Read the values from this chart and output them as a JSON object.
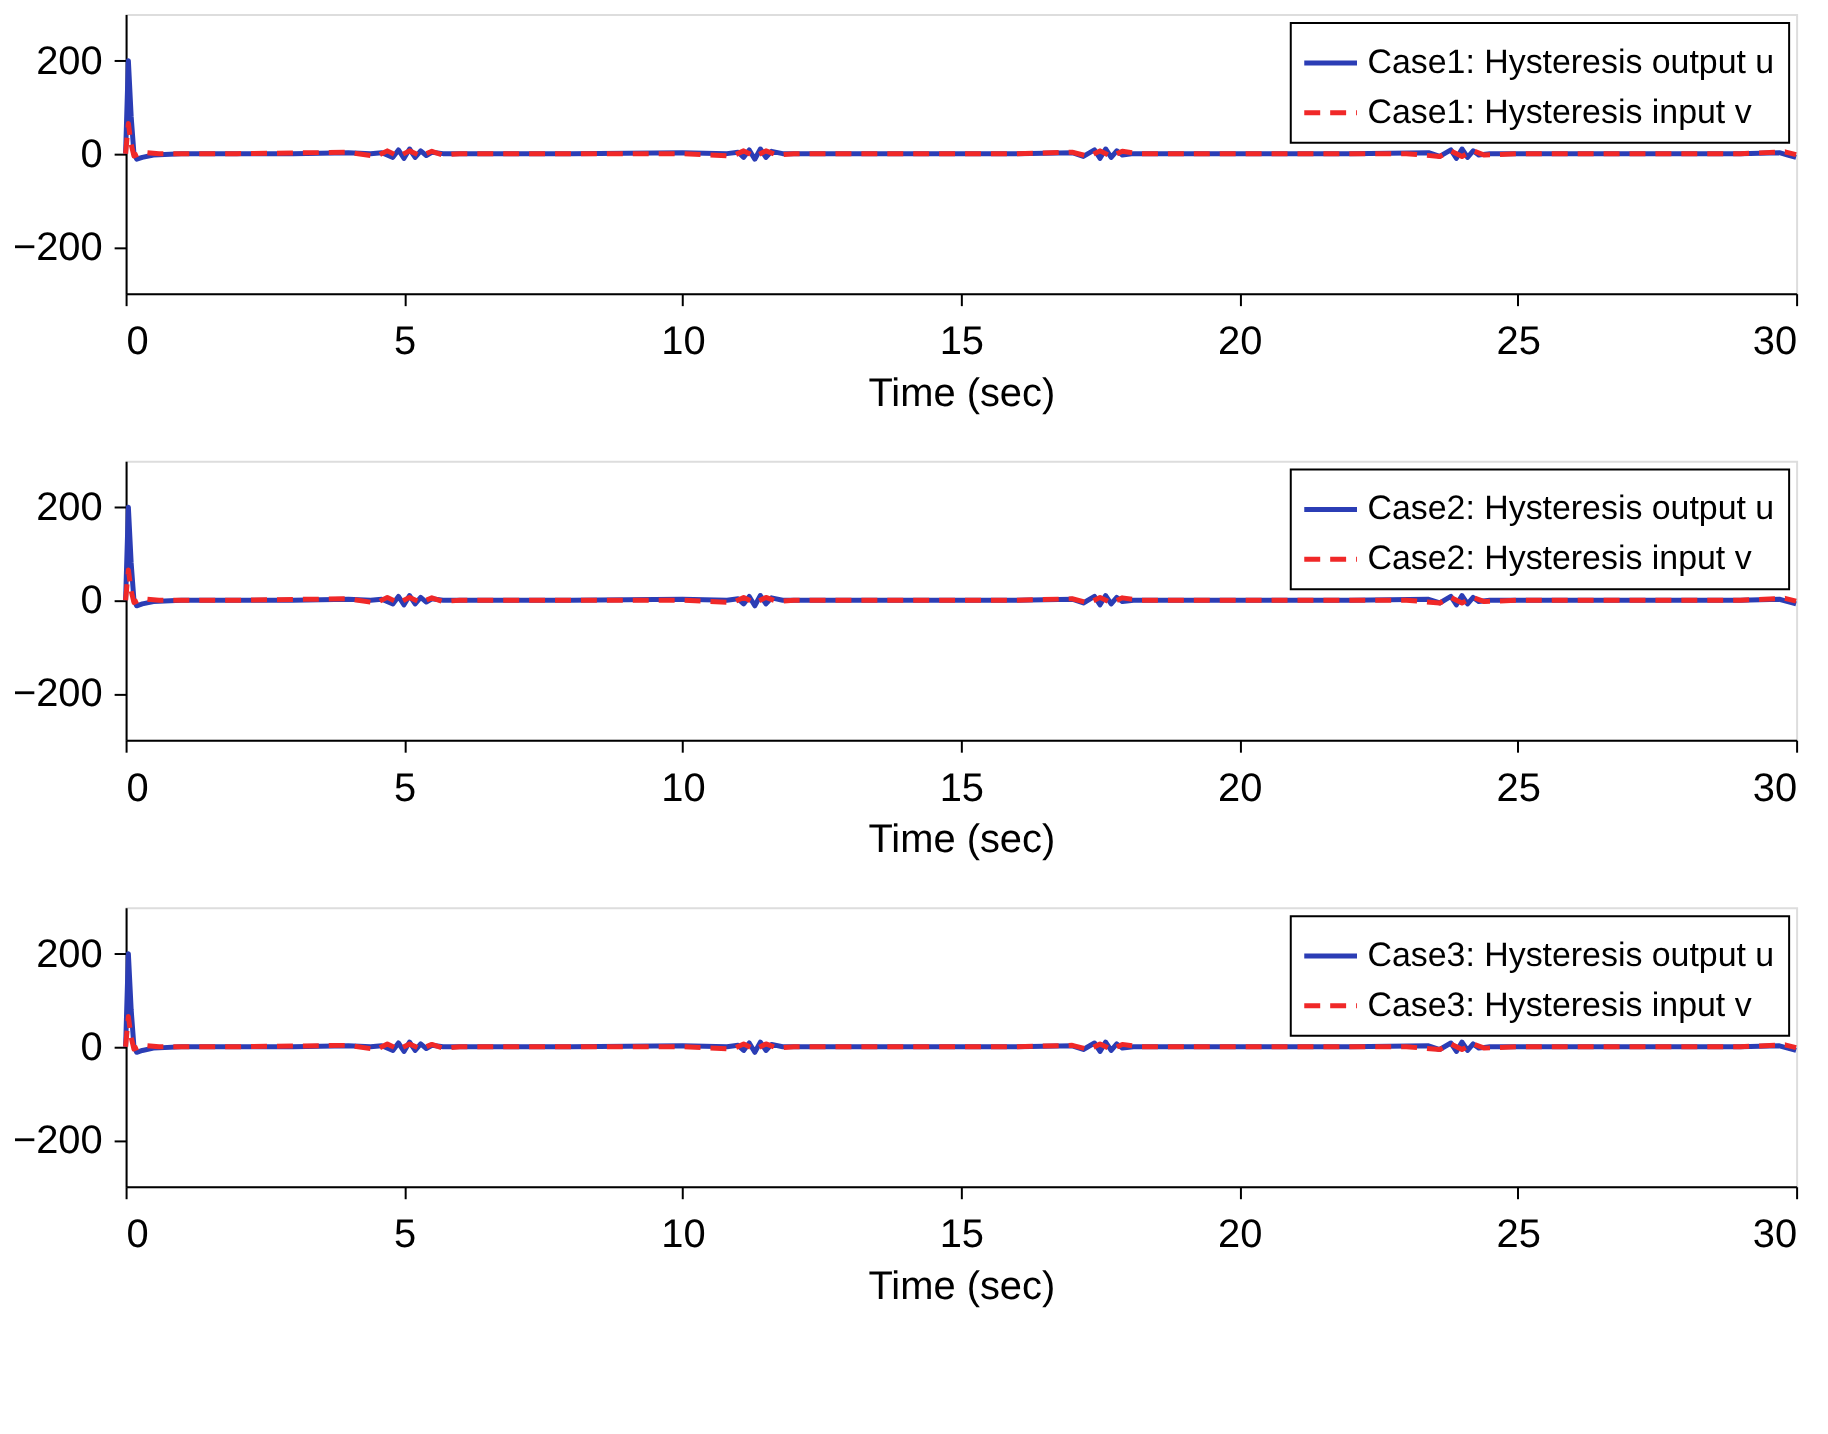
{
  "chart_data": [
    {
      "type": "line",
      "xlabel": "Time (sec)",
      "xlim": [
        0,
        30
      ],
      "xticks": [
        0,
        5,
        10,
        15,
        20,
        25,
        30
      ],
      "ylim": [
        -300,
        300
      ],
      "yticks": [
        -200,
        0,
        200
      ],
      "grid": false,
      "legend": "top right",
      "marker": "none",
      "series": [
        {
          "name": "Case1: Hysteresis output u",
          "color": "#2b3db5",
          "line_style": "solid",
          "x": [
            0,
            0.05,
            0.1,
            0.15,
            0.2,
            0.3,
            0.5,
            1,
            2,
            3,
            4,
            4.4,
            4.6,
            4.8,
            4.9,
            5.0,
            5.1,
            5.2,
            5.3,
            5.4,
            5.5,
            5.7,
            6,
            8,
            10,
            10.8,
            11,
            11.1,
            11.2,
            11.3,
            11.4,
            11.5,
            11.6,
            11.8,
            12.2,
            14,
            16,
            17,
            17.2,
            17.4,
            17.5,
            17.6,
            17.7,
            17.8,
            17.9,
            18.1,
            18.5,
            20,
            22,
            23.4,
            23.6,
            23.8,
            23.9,
            24.0,
            24.1,
            24.2,
            24.3,
            24.5,
            25,
            27,
            29,
            29.7,
            29.85,
            30
          ],
          "values": [
            0,
            200,
            80,
            0,
            -12,
            -8,
            -3,
            0,
            0,
            0,
            2,
            0,
            2,
            -8,
            8,
            -10,
            10,
            -8,
            6,
            -4,
            3,
            0,
            0,
            0,
            2,
            0,
            3,
            -8,
            8,
            -12,
            10,
            -8,
            5,
            0,
            0,
            0,
            0,
            2,
            -6,
            8,
            -10,
            10,
            -8,
            6,
            -3,
            0,
            0,
            0,
            0,
            2,
            -6,
            8,
            -10,
            10,
            -8,
            6,
            -3,
            0,
            0,
            0,
            0,
            2,
            -3,
            -8
          ]
        },
        {
          "name": "Case1: Hysteresis input v",
          "color": "#f02828",
          "line_style": "dashed",
          "x": [
            0,
            0.05,
            0.1,
            0.15,
            0.3,
            0.6,
            2,
            4,
            4.5,
            4.7,
            4.9,
            5.1,
            5.3,
            5.5,
            5.7,
            6,
            10,
            10.9,
            11.1,
            11.3,
            11.5,
            11.7,
            12,
            16,
            17,
            17.3,
            17.5,
            17.7,
            17.9,
            18.2,
            23,
            23.6,
            23.8,
            24.0,
            24.2,
            24.4,
            25,
            29,
            29.8,
            30
          ],
          "values": [
            0,
            65,
            20,
            -5,
            3,
            0,
            0,
            3,
            -6,
            6,
            -6,
            6,
            -5,
            5,
            -3,
            0,
            0,
            -5,
            6,
            -6,
            6,
            -3,
            0,
            0,
            3,
            -6,
            6,
            -6,
            5,
            0,
            0,
            -6,
            6,
            -6,
            6,
            -3,
            0,
            0,
            4,
            -2
          ]
        }
      ]
    },
    {
      "type": "line",
      "xlabel": "Time (sec)",
      "xlim": [
        0,
        30
      ],
      "xticks": [
        0,
        5,
        10,
        15,
        20,
        25,
        30
      ],
      "ylim": [
        -300,
        300
      ],
      "yticks": [
        -200,
        0,
        200
      ],
      "grid": false,
      "legend": "top right",
      "marker": "none",
      "series": [
        {
          "name": "Case2: Hysteresis output u",
          "color": "#2b3db5",
          "line_style": "solid",
          "x": [
            0,
            0.05,
            0.1,
            0.15,
            0.2,
            0.3,
            0.5,
            1,
            2,
            3,
            4,
            4.4,
            4.6,
            4.8,
            4.9,
            5.0,
            5.1,
            5.2,
            5.3,
            5.4,
            5.5,
            5.7,
            6,
            8,
            10,
            10.8,
            11,
            11.1,
            11.2,
            11.3,
            11.4,
            11.5,
            11.6,
            11.8,
            12.2,
            14,
            16,
            17,
            17.2,
            17.4,
            17.5,
            17.6,
            17.7,
            17.8,
            17.9,
            18.1,
            18.5,
            20,
            22,
            23.4,
            23.6,
            23.8,
            23.9,
            24.0,
            24.1,
            24.2,
            24.3,
            24.5,
            25,
            27,
            29,
            29.7,
            29.85,
            30
          ],
          "values": [
            0,
            200,
            80,
            0,
            -12,
            -8,
            -3,
            0,
            0,
            0,
            2,
            0,
            2,
            -8,
            8,
            -10,
            10,
            -8,
            6,
            -4,
            3,
            0,
            0,
            0,
            2,
            0,
            3,
            -8,
            8,
            -12,
            10,
            -8,
            5,
            0,
            0,
            0,
            0,
            2,
            -6,
            8,
            -10,
            10,
            -8,
            6,
            -3,
            0,
            0,
            0,
            0,
            2,
            -6,
            8,
            -10,
            10,
            -8,
            6,
            -3,
            0,
            0,
            0,
            0,
            2,
            -3,
            -8
          ]
        },
        {
          "name": "Case2: Hysteresis input v",
          "color": "#f02828",
          "line_style": "dashed",
          "x": [
            0,
            0.05,
            0.1,
            0.15,
            0.3,
            0.6,
            2,
            4,
            4.5,
            4.7,
            4.9,
            5.1,
            5.3,
            5.5,
            5.7,
            6,
            10,
            10.9,
            11.1,
            11.3,
            11.5,
            11.7,
            12,
            16,
            17,
            17.3,
            17.5,
            17.7,
            17.9,
            18.2,
            23,
            23.6,
            23.8,
            24.0,
            24.2,
            24.4,
            25,
            29,
            29.8,
            30
          ],
          "values": [
            0,
            65,
            20,
            -5,
            3,
            0,
            0,
            3,
            -6,
            6,
            -6,
            6,
            -5,
            5,
            -3,
            0,
            0,
            -5,
            6,
            -6,
            6,
            -3,
            0,
            0,
            3,
            -6,
            6,
            -6,
            5,
            0,
            0,
            -6,
            6,
            -6,
            6,
            -3,
            0,
            0,
            4,
            -2
          ]
        }
      ]
    },
    {
      "type": "line",
      "xlabel": "Time (sec)",
      "xlim": [
        0,
        30
      ],
      "xticks": [
        0,
        5,
        10,
        15,
        20,
        25,
        30
      ],
      "ylim": [
        -300,
        300
      ],
      "yticks": [
        -200,
        0,
        200
      ],
      "grid": false,
      "legend": "top right",
      "marker": "none",
      "series": [
        {
          "name": "Case3: Hysteresis output u",
          "color": "#2b3db5",
          "line_style": "solid",
          "x": [
            0,
            0.05,
            0.1,
            0.15,
            0.2,
            0.3,
            0.5,
            1,
            2,
            3,
            4,
            4.4,
            4.6,
            4.8,
            4.9,
            5.0,
            5.1,
            5.2,
            5.3,
            5.4,
            5.5,
            5.7,
            6,
            8,
            10,
            10.8,
            11,
            11.1,
            11.2,
            11.3,
            11.4,
            11.5,
            11.6,
            11.8,
            12.2,
            14,
            16,
            17,
            17.2,
            17.4,
            17.5,
            17.6,
            17.7,
            17.8,
            17.9,
            18.1,
            18.5,
            20,
            22,
            23.4,
            23.6,
            23.8,
            23.9,
            24.0,
            24.1,
            24.2,
            24.3,
            24.5,
            25,
            27,
            29,
            29.7,
            29.85,
            30
          ],
          "values": [
            0,
            200,
            80,
            0,
            -12,
            -8,
            -3,
            0,
            0,
            0,
            2,
            0,
            2,
            -8,
            8,
            -10,
            10,
            -8,
            6,
            -4,
            3,
            0,
            0,
            0,
            2,
            0,
            3,
            -8,
            8,
            -12,
            10,
            -8,
            5,
            0,
            0,
            0,
            0,
            2,
            -6,
            8,
            -10,
            10,
            -8,
            6,
            -3,
            0,
            0,
            0,
            0,
            2,
            -6,
            8,
            -10,
            10,
            -8,
            6,
            -3,
            0,
            0,
            0,
            0,
            2,
            -3,
            -8
          ]
        },
        {
          "name": "Case3: Hysteresis input v",
          "color": "#f02828",
          "line_style": "dashed",
          "x": [
            0,
            0.05,
            0.1,
            0.15,
            0.3,
            0.6,
            2,
            4,
            4.5,
            4.7,
            4.9,
            5.1,
            5.3,
            5.5,
            5.7,
            6,
            10,
            10.9,
            11.1,
            11.3,
            11.5,
            11.7,
            12,
            16,
            17,
            17.3,
            17.5,
            17.7,
            17.9,
            18.2,
            23,
            23.6,
            23.8,
            24.0,
            24.2,
            24.4,
            25,
            29,
            29.8,
            30
          ],
          "values": [
            0,
            65,
            20,
            -5,
            3,
            0,
            0,
            3,
            -6,
            6,
            -6,
            6,
            -5,
            5,
            -3,
            0,
            0,
            -5,
            6,
            -6,
            6,
            -3,
            0,
            0,
            3,
            -6,
            6,
            -6,
            5,
            0,
            0,
            -6,
            6,
            -6,
            6,
            -3,
            0,
            0,
            4,
            -2
          ]
        }
      ]
    }
  ]
}
